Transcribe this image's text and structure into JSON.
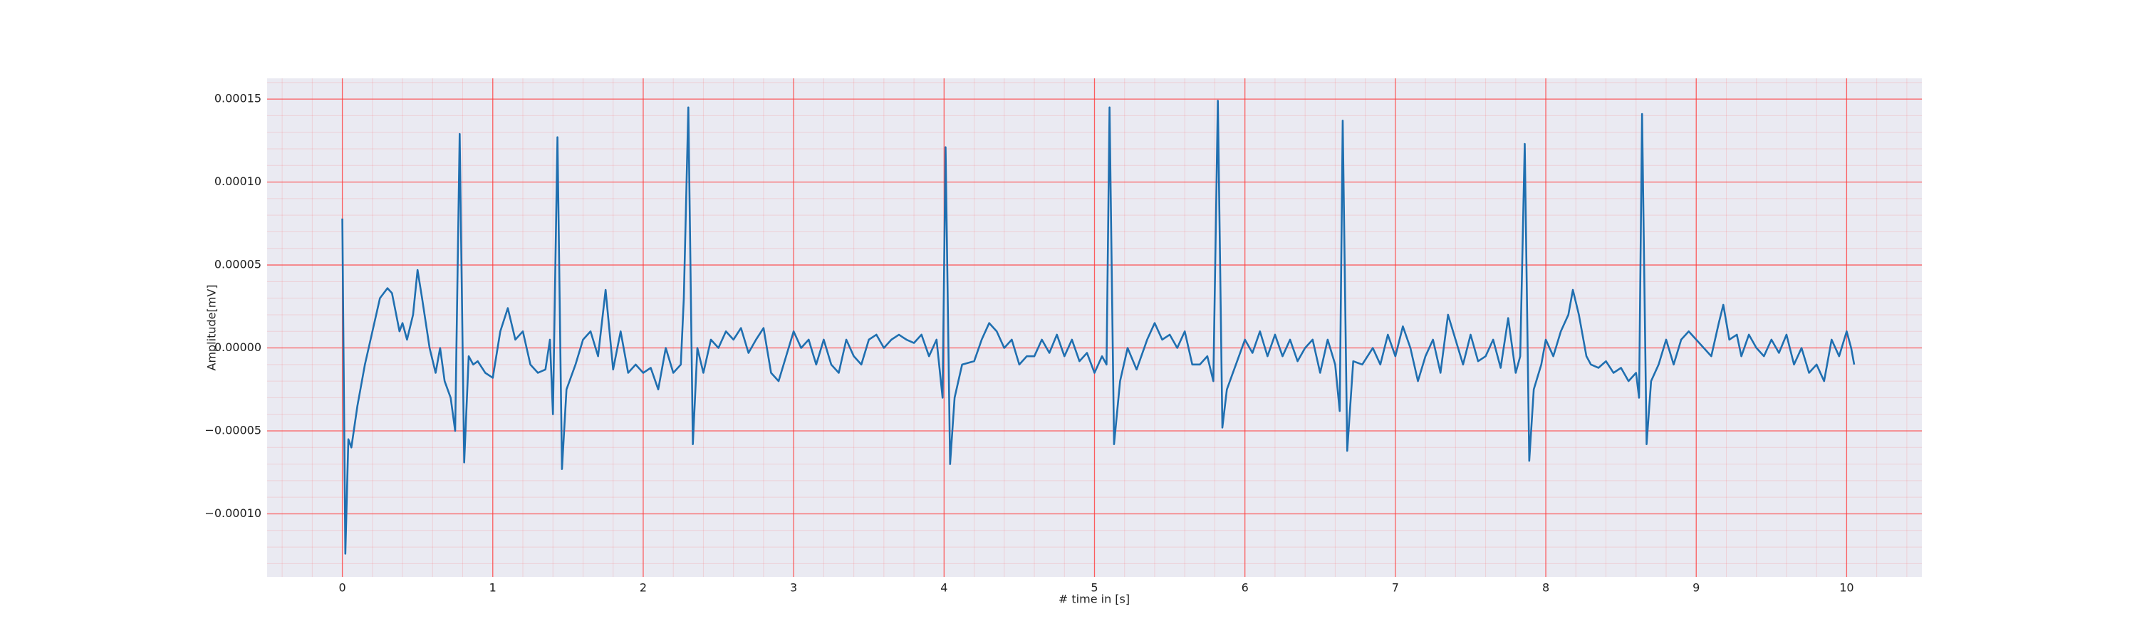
{
  "chart_data": {
    "type": "line",
    "xlabel": "# time in [s]",
    "ylabel": "Amplitude[mV]",
    "color": "#1f6fb0",
    "grid": true,
    "minor_grid": true,
    "grid_color": "#ff3b3b",
    "background": "#eaeaf2",
    "xlim": [
      -0.5,
      10.5
    ],
    "xticks": [
      0,
      1,
      2,
      3,
      4,
      5,
      6,
      7,
      8,
      9,
      10
    ],
    "ylim": [
      -0.000138,
      0.0001625
    ],
    "yticks": [
      {
        "value": -0.0001,
        "label": "−0.00010"
      },
      {
        "value": -5e-05,
        "label": "−0.00005"
      },
      {
        "value": 0,
        "label": "0.00000"
      },
      {
        "value": 5e-05,
        "label": "0.00005"
      },
      {
        "value": 0.0001,
        "label": "0.00010"
      },
      {
        "value": 0.00015,
        "label": "0.00015"
      }
    ],
    "x": [
      0,
      0.02,
      0.04,
      0.06,
      0.1,
      0.15,
      0.2,
      0.25,
      0.3,
      0.33,
      0.38,
      0.4,
      0.43,
      0.47,
      0.5,
      0.53,
      0.58,
      0.62,
      0.65,
      0.68,
      0.72,
      0.75,
      0.78,
      0.81,
      0.84,
      0.87,
      0.9,
      0.95,
      1.0,
      1.05,
      1.1,
      1.15,
      1.2,
      1.25,
      1.3,
      1.35,
      1.38,
      1.4,
      1.43,
      1.46,
      1.49,
      1.55,
      1.6,
      1.65,
      1.7,
      1.75,
      1.8,
      1.85,
      1.9,
      1.95,
      2.0,
      2.05,
      2.1,
      2.15,
      2.2,
      2.25,
      2.27,
      2.3,
      2.33,
      2.36,
      2.4,
      2.45,
      2.5,
      2.55,
      2.6,
      2.65,
      2.7,
      2.75,
      2.8,
      2.85,
      2.9,
      2.95,
      3.0,
      3.05,
      3.1,
      3.15,
      3.2,
      3.25,
      3.3,
      3.35,
      3.4,
      3.45,
      3.5,
      3.55,
      3.6,
      3.65,
      3.7,
      3.75,
      3.8,
      3.85,
      3.9,
      3.95,
      3.99,
      4.01,
      4.04,
      4.07,
      4.12,
      4.2,
      4.25,
      4.3,
      4.35,
      4.4,
      4.45,
      4.5,
      4.55,
      4.6,
      4.65,
      4.7,
      4.75,
      4.8,
      4.85,
      4.9,
      4.95,
      5.0,
      5.05,
      5.08,
      5.1,
      5.13,
      5.17,
      5.22,
      5.28,
      5.35,
      5.4,
      5.45,
      5.5,
      5.55,
      5.6,
      5.65,
      5.7,
      5.75,
      5.79,
      5.82,
      5.85,
      5.88,
      5.92,
      6.0,
      6.05,
      6.1,
      6.15,
      6.2,
      6.25,
      6.3,
      6.35,
      6.4,
      6.45,
      6.5,
      6.55,
      6.6,
      6.63,
      6.65,
      6.68,
      6.72,
      6.78,
      6.85,
      6.9,
      6.95,
      7.0,
      7.05,
      7.1,
      7.15,
      7.2,
      7.25,
      7.3,
      7.35,
      7.4,
      7.45,
      7.5,
      7.55,
      7.6,
      7.65,
      7.7,
      7.75,
      7.8,
      7.83,
      7.86,
      7.89,
      7.92,
      7.97,
      8.0,
      8.05,
      8.1,
      8.15,
      8.18,
      8.22,
      8.27,
      8.3,
      8.35,
      8.4,
      8.45,
      8.5,
      8.55,
      8.6,
      8.62,
      8.64,
      8.67,
      8.7,
      8.75,
      8.8,
      8.85,
      8.9,
      8.95,
      9.0,
      9.05,
      9.1,
      9.15,
      9.18,
      9.22,
      9.27,
      9.3,
      9.35,
      9.4,
      9.45,
      9.5,
      9.55,
      9.6,
      9.65,
      9.7,
      9.75,
      9.8,
      9.85,
      9.9,
      9.95,
      10.0,
      10.03,
      10.05
    ],
    "values": [
      7.8e-05,
      -0.000124,
      -5.5e-05,
      -6e-05,
      -3.5e-05,
      -1e-05,
      1e-05,
      3e-05,
      3.6e-05,
      3.3e-05,
      1e-05,
      1.5e-05,
      5e-06,
      2e-05,
      4.7e-05,
      3e-05,
      0,
      -1.5e-05,
      0,
      -2e-05,
      -3e-05,
      -5e-05,
      0.000129,
      -6.9e-05,
      -5e-06,
      -1e-05,
      -8e-06,
      -1.5e-05,
      -1.8e-05,
      1e-05,
      2.4e-05,
      5e-06,
      1e-05,
      -1e-05,
      -1.5e-05,
      -1.3e-05,
      5e-06,
      -4e-05,
      0.000127,
      -7.3e-05,
      -2.5e-05,
      -1e-05,
      5e-06,
      1e-05,
      -5e-06,
      3.5e-05,
      -1.3e-05,
      1e-05,
      -1.5e-05,
      -1e-05,
      -1.5e-05,
      -1.2e-05,
      -2.5e-05,
      0,
      -1.5e-05,
      -1e-05,
      3e-05,
      0.000145,
      -5.8e-05,
      0,
      -1.5e-05,
      5e-06,
      0,
      1e-05,
      5e-06,
      1.2e-05,
      -3e-06,
      5e-06,
      1.2e-05,
      -1.5e-05,
      -2e-05,
      -5e-06,
      1e-05,
      0,
      5e-06,
      -1e-05,
      5e-06,
      -1e-05,
      -1.5e-05,
      5e-06,
      -5e-06,
      -1e-05,
      5e-06,
      8e-06,
      0,
      5e-06,
      8e-06,
      5e-06,
      3e-06,
      8e-06,
      -5e-06,
      5e-06,
      -3e-05,
      0.000121,
      -7e-05,
      -3e-05,
      -1e-05,
      -8e-06,
      5e-06,
      1.5e-05,
      1e-05,
      0,
      5e-06,
      -1e-05,
      -5e-06,
      -5e-06,
      5e-06,
      -3e-06,
      8e-06,
      -5e-06,
      5e-06,
      -8e-06,
      -3e-06,
      -1.5e-05,
      -5e-06,
      -1e-05,
      0.000145,
      -5.8e-05,
      -2e-05,
      0,
      -1.3e-05,
      5e-06,
      1.5e-05,
      5e-06,
      8e-06,
      0,
      1e-05,
      -1e-05,
      -1e-05,
      -5e-06,
      -2e-05,
      0.000149,
      -4.8e-05,
      -2.5e-05,
      -1.5e-05,
      5e-06,
      -3e-06,
      1e-05,
      -5e-06,
      8e-06,
      -5e-06,
      5e-06,
      -8e-06,
      0,
      5e-06,
      -1.5e-05,
      5e-06,
      -1e-05,
      -3.8e-05,
      0.000137,
      -6.2e-05,
      -8e-06,
      -1e-05,
      0,
      -1e-05,
      8e-06,
      -5e-06,
      1.3e-05,
      0,
      -2e-05,
      -5e-06,
      5e-06,
      -1.5e-05,
      2e-05,
      5e-06,
      -1e-05,
      8e-06,
      -8e-06,
      -5e-06,
      5e-06,
      -1.2e-05,
      1.8e-05,
      -1.5e-05,
      -5e-06,
      0.000123,
      -6.8e-05,
      -2.5e-05,
      -1e-05,
      5e-06,
      -5e-06,
      1e-05,
      2e-05,
      3.5e-05,
      2e-05,
      -5e-06,
      -1e-05,
      -1.2e-05,
      -8e-06,
      -1.5e-05,
      -1.2e-05,
      -2e-05,
      -1.5e-05,
      -3e-05,
      0.000141,
      -5.8e-05,
      -2e-05,
      -1e-05,
      5e-06,
      -1e-05,
      5e-06,
      1e-05,
      5e-06,
      0,
      -5e-06,
      1.5e-05,
      2.6e-05,
      5e-06,
      8e-06,
      -5e-06,
      8e-06,
      0,
      -5e-06,
      5e-06,
      -3e-06,
      8e-06,
      -1e-05,
      0,
      -1.5e-05,
      -1e-05,
      -2e-05,
      5e-06,
      -5e-06,
      1e-05,
      0,
      -1e-05
    ]
  }
}
